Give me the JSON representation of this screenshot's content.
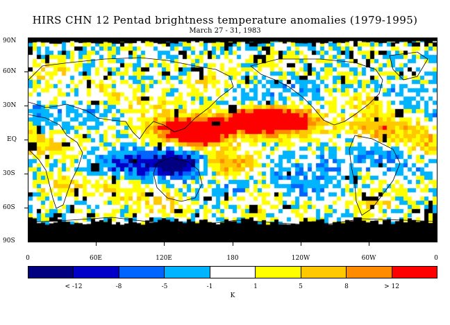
{
  "header": {
    "title": "HIRS CHN 12 Pentad brightness temperature anomalies (1979-1995)",
    "subtitle": "March 27 - 31, 1983"
  },
  "axes": {
    "lat_labels": [
      "90N",
      "60N",
      "30N",
      "EQ",
      "30S",
      "60S",
      "90S"
    ],
    "lon_labels": [
      "0",
      "60E",
      "120E",
      "180",
      "120W",
      "60W",
      "0"
    ]
  },
  "legend": {
    "colors": [
      "#000080",
      "#0000c8",
      "#0064ff",
      "#00b4ff",
      "#ffffff",
      "#ffff00",
      "#ffc800",
      "#ff8c00",
      "#ff0000"
    ],
    "labels": [
      "< -12",
      "-8",
      "-5",
      "-1",
      "1",
      "5",
      "8",
      "> 12"
    ],
    "units": "K"
  },
  "map_colors": {
    "no_data": "#000000",
    "coast": "#000000"
  },
  "anomalies": [
    {
      "lon": 150,
      "lat": 5,
      "level": 8
    },
    {
      "lon": 140,
      "lat": 8,
      "level": 7
    },
    {
      "lon": 160,
      "lat": 10,
      "level": 7
    },
    {
      "lon": 120,
      "lat": 12,
      "level": 6
    },
    {
      "lon": 190,
      "lat": 18,
      "level": 7
    },
    {
      "lon": 205,
      "lat": 15,
      "level": 8
    },
    {
      "lon": 220,
      "lat": 18,
      "level": 8
    },
    {
      "lon": 235,
      "lat": 17,
      "level": 6
    },
    {
      "lon": 250,
      "lat": 12,
      "level": 5
    },
    {
      "lon": 305,
      "lat": 12,
      "level": 6
    },
    {
      "lon": 320,
      "lat": 10,
      "level": 5
    },
    {
      "lon": 350,
      "lat": 0,
      "level": 6
    },
    {
      "lon": 25,
      "lat": -10,
      "level": 6
    },
    {
      "lon": 170,
      "lat": -20,
      "level": 6
    },
    {
      "lon": 185,
      "lat": -22,
      "level": 5
    },
    {
      "lon": 135,
      "lat": -22,
      "level": 1
    },
    {
      "lon": 130,
      "lat": -18,
      "level": 2
    },
    {
      "lon": 95,
      "lat": -20,
      "level": 2
    },
    {
      "lon": 110,
      "lat": -25,
      "level": 3
    },
    {
      "lon": 70,
      "lat": -20,
      "level": 3
    },
    {
      "lon": 30,
      "lat": -15,
      "level": 3
    },
    {
      "lon": 55,
      "lat": 25,
      "level": 3
    },
    {
      "lon": 10,
      "lat": 20,
      "level": 3
    },
    {
      "lon": 330,
      "lat": -20,
      "level": 3
    },
    {
      "lon": 300,
      "lat": -15,
      "level": 3
    },
    {
      "lon": 260,
      "lat": -25,
      "level": 3
    },
    {
      "lon": 230,
      "lat": -30,
      "level": 3
    },
    {
      "lon": 20,
      "lat": 60,
      "level": 5
    },
    {
      "lon": 60,
      "lat": 40,
      "level": 5
    },
    {
      "lon": 300,
      "lat": 35,
      "level": 5
    },
    {
      "lon": 330,
      "lat": 40,
      "level": 3
    },
    {
      "lon": 240,
      "lat": 45,
      "level": 3
    },
    {
      "lon": 200,
      "lat": 35,
      "level": 3
    },
    {
      "lon": 100,
      "lat": 30,
      "level": 5
    },
    {
      "lon": 160,
      "lat": 50,
      "level": 5
    },
    {
      "lon": 120,
      "lat": -55,
      "level": 5
    },
    {
      "lon": 200,
      "lat": -55,
      "level": 5
    },
    {
      "lon": 80,
      "lat": -45,
      "level": 5
    },
    {
      "lon": 300,
      "lat": -55,
      "level": 5
    },
    {
      "lon": 30,
      "lat": -40,
      "level": 5
    },
    {
      "lon": 250,
      "lat": -45,
      "level": 3
    },
    {
      "lon": 180,
      "lat": -45,
      "level": 3
    }
  ]
}
